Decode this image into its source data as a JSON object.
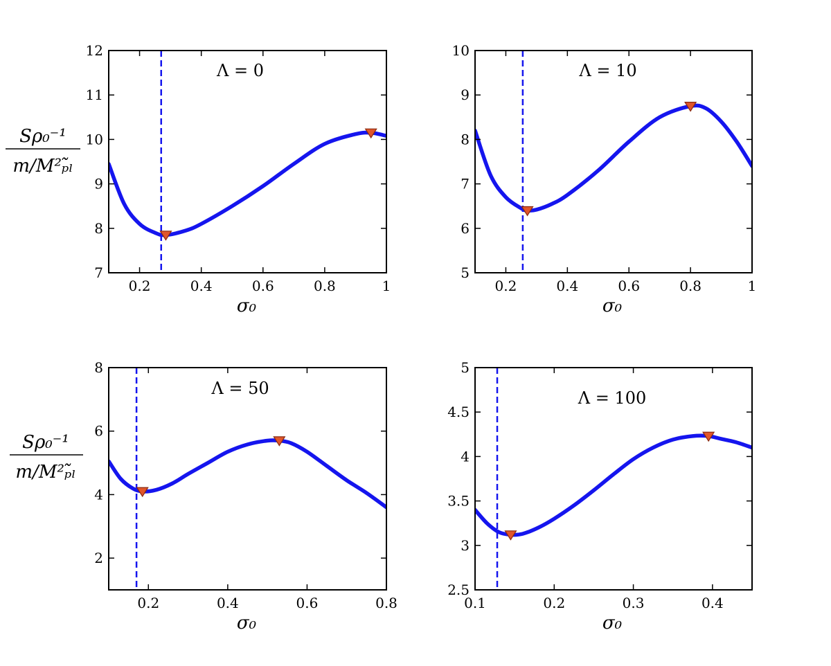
{
  "figure_ylabel": {
    "numerator": "Sρ₀⁻¹",
    "denominator": "m/M²ₚ̃ₗ"
  },
  "colors": {
    "curve": "#1515ee",
    "marker_fill": "#e0562b",
    "marker_edge": "#8a2a10",
    "vline": "#1515ee"
  },
  "chart_data": [
    {
      "type": "line",
      "annotation": "Λ = 0",
      "xlabel": "σ₀",
      "xlim": [
        0.1,
        1.0
      ],
      "ylim": [
        7,
        12
      ],
      "xticks": [
        0.2,
        0.4,
        0.6,
        0.8,
        1.0
      ],
      "xtick_labels": [
        "0.2",
        "0.4",
        "0.6",
        "0.8",
        "1"
      ],
      "yticks": [
        7,
        8,
        9,
        10,
        11,
        12
      ],
      "ytick_labels": [
        "7",
        "8",
        "9",
        "10",
        "11",
        "12"
      ],
      "vline_x": 0.27,
      "markers": [
        [
          0.285,
          7.85
        ],
        [
          0.95,
          10.15
        ]
      ],
      "x": [
        0.1,
        0.15,
        0.2,
        0.25,
        0.285,
        0.35,
        0.4,
        0.5,
        0.6,
        0.7,
        0.8,
        0.9,
        0.95,
        1.0
      ],
      "y": [
        9.45,
        8.55,
        8.1,
        7.9,
        7.85,
        7.95,
        8.1,
        8.5,
        8.95,
        9.45,
        9.9,
        10.12,
        10.15,
        10.08
      ]
    },
    {
      "type": "line",
      "annotation": "Λ = 10",
      "xlabel": "σ₀",
      "xlim": [
        0.1,
        1.0
      ],
      "ylim": [
        5,
        10
      ],
      "xticks": [
        0.2,
        0.4,
        0.6,
        0.8,
        1.0
      ],
      "xtick_labels": [
        "0.2",
        "0.4",
        "0.6",
        "0.8",
        "1"
      ],
      "yticks": [
        5,
        6,
        7,
        8,
        9,
        10
      ],
      "ytick_labels": [
        "5",
        "6",
        "7",
        "8",
        "9",
        "10"
      ],
      "vline_x": 0.255,
      "markers": [
        [
          0.27,
          6.4
        ],
        [
          0.8,
          8.75
        ]
      ],
      "x": [
        0.1,
        0.15,
        0.2,
        0.25,
        0.27,
        0.3,
        0.35,
        0.4,
        0.5,
        0.6,
        0.7,
        0.8,
        0.85,
        0.9,
        0.95,
        1.0
      ],
      "y": [
        8.2,
        7.2,
        6.7,
        6.45,
        6.4,
        6.42,
        6.55,
        6.75,
        7.3,
        7.95,
        8.5,
        8.75,
        8.7,
        8.4,
        7.95,
        7.4
      ]
    },
    {
      "type": "line",
      "annotation": "Λ = 50",
      "xlabel": "σ₀",
      "xlim": [
        0.1,
        0.8
      ],
      "ylim": [
        1,
        8
      ],
      "xticks": [
        0.2,
        0.4,
        0.6,
        0.8
      ],
      "xtick_labels": [
        "0.2",
        "0.4",
        "0.6",
        "0.8"
      ],
      "yticks": [
        2,
        4,
        6,
        8
      ],
      "ytick_labels": [
        "2",
        "4",
        "6",
        "8"
      ],
      "vline_x": 0.17,
      "markers": [
        [
          0.185,
          4.1
        ],
        [
          0.53,
          5.7
        ]
      ],
      "x": [
        0.1,
        0.13,
        0.16,
        0.185,
        0.22,
        0.26,
        0.3,
        0.35,
        0.4,
        0.45,
        0.5,
        0.53,
        0.56,
        0.6,
        0.65,
        0.7,
        0.75,
        0.8
      ],
      "y": [
        5.05,
        4.5,
        4.2,
        4.1,
        4.15,
        4.35,
        4.65,
        5.0,
        5.35,
        5.58,
        5.7,
        5.7,
        5.62,
        5.35,
        4.9,
        4.45,
        4.05,
        3.6
      ]
    },
    {
      "type": "line",
      "annotation": "Λ = 100",
      "xlabel": "σ₀",
      "xlim": [
        0.1,
        0.45
      ],
      "ylim": [
        2.5,
        5
      ],
      "xticks": [
        0.1,
        0.2,
        0.3,
        0.4
      ],
      "xtick_labels": [
        "0.1",
        "0.2",
        "0.3",
        "0.4"
      ],
      "yticks": [
        2.5,
        3,
        3.5,
        4,
        4.5,
        5
      ],
      "ytick_labels": [
        "2.5",
        "3",
        "3.5",
        "4",
        "4.5",
        "5"
      ],
      "vline_x": 0.128,
      "markers": [
        [
          0.145,
          3.12
        ],
        [
          0.395,
          4.23
        ]
      ],
      "x": [
        0.1,
        0.115,
        0.13,
        0.145,
        0.16,
        0.18,
        0.2,
        0.225,
        0.25,
        0.275,
        0.3,
        0.325,
        0.35,
        0.375,
        0.395,
        0.41,
        0.43,
        0.45
      ],
      "y": [
        3.4,
        3.25,
        3.15,
        3.12,
        3.13,
        3.2,
        3.3,
        3.45,
        3.62,
        3.8,
        3.97,
        4.1,
        4.19,
        4.23,
        4.23,
        4.2,
        4.16,
        4.1
      ]
    }
  ]
}
